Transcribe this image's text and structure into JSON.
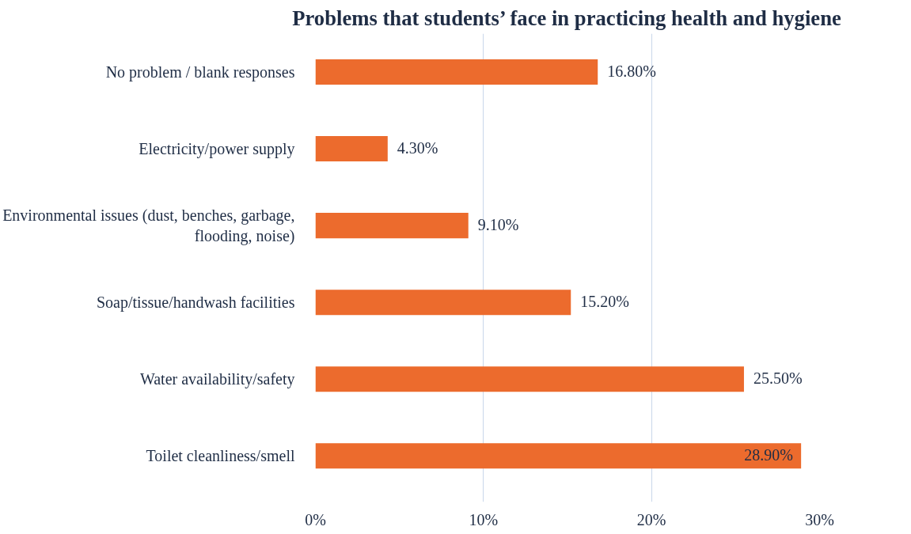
{
  "chart_data": {
    "type": "bar",
    "orientation": "horizontal",
    "title": "Problems that students’ face in practicing health and hygiene",
    "categories": [
      "No problem / blank responses",
      "Electricity/power supply",
      "Environmental issues (dust, benches, garbage, flooding, noise)",
      "Soap/tissue/handwash facilities",
      "Water availability/safety",
      "Toilet cleanliness/smell"
    ],
    "values": [
      16.8,
      4.3,
      9.1,
      15.2,
      25.5,
      28.9
    ],
    "value_labels": [
      "16.80%",
      "4.30%",
      "9.10%",
      "15.20%",
      "25.50%",
      "28.90%"
    ],
    "color": "#ec6b2d",
    "xlim": [
      0,
      30
    ],
    "xticks": [
      {
        "value": 0,
        "label": "0%"
      },
      {
        "value": 10,
        "label": "10%"
      },
      {
        "value": 20,
        "label": "20%"
      },
      {
        "value": 30,
        "label": "30%"
      }
    ],
    "grid": "x"
  }
}
